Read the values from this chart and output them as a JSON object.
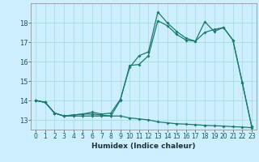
{
  "title": "",
  "xlabel": "Humidex (Indice chaleur)",
  "ylabel": "",
  "bg_color": "#cceeff",
  "grid_color": "#aadddd",
  "line_color": "#1a7a6e",
  "xlim": [
    -0.5,
    23.5
  ],
  "ylim": [
    12.5,
    19.0
  ],
  "yticks": [
    13,
    14,
    15,
    16,
    17,
    18
  ],
  "xticks": [
    0,
    1,
    2,
    3,
    4,
    5,
    6,
    7,
    8,
    9,
    10,
    11,
    12,
    13,
    14,
    15,
    16,
    17,
    18,
    19,
    20,
    21,
    22,
    23
  ],
  "line1_x": [
    0,
    1,
    2,
    3,
    4,
    5,
    6,
    7,
    8,
    9,
    10,
    11,
    12,
    13,
    14,
    15,
    16,
    17,
    18,
    19,
    20,
    21,
    22,
    23
  ],
  "line1_y": [
    14.0,
    13.9,
    13.35,
    13.2,
    13.2,
    13.2,
    13.2,
    13.2,
    13.2,
    13.2,
    13.1,
    13.05,
    13.0,
    12.9,
    12.85,
    12.8,
    12.78,
    12.75,
    12.72,
    12.7,
    12.68,
    12.65,
    12.63,
    12.6
  ],
  "line2_x": [
    0,
    1,
    2,
    3,
    4,
    5,
    6,
    7,
    8,
    9,
    10,
    11,
    12,
    13,
    14,
    15,
    16,
    17,
    18,
    19,
    20,
    21,
    22,
    23
  ],
  "line2_y": [
    14.0,
    13.9,
    13.35,
    13.2,
    13.25,
    13.3,
    13.3,
    13.25,
    13.2,
    14.0,
    15.8,
    15.85,
    16.3,
    18.1,
    17.85,
    17.4,
    17.1,
    17.05,
    17.5,
    17.65,
    17.75,
    17.1,
    14.9,
    12.65
  ],
  "line3_x": [
    0,
    1,
    2,
    3,
    4,
    5,
    6,
    7,
    8,
    9,
    10,
    11,
    12,
    13,
    14,
    15,
    16,
    17,
    18,
    19,
    20,
    21,
    22,
    23
  ],
  "line3_y": [
    14.0,
    13.9,
    13.35,
    13.2,
    13.25,
    13.3,
    13.4,
    13.3,
    13.35,
    14.05,
    15.7,
    16.3,
    16.5,
    18.55,
    18.0,
    17.55,
    17.2,
    17.05,
    18.05,
    17.55,
    17.75,
    17.1,
    14.9,
    12.65
  ]
}
